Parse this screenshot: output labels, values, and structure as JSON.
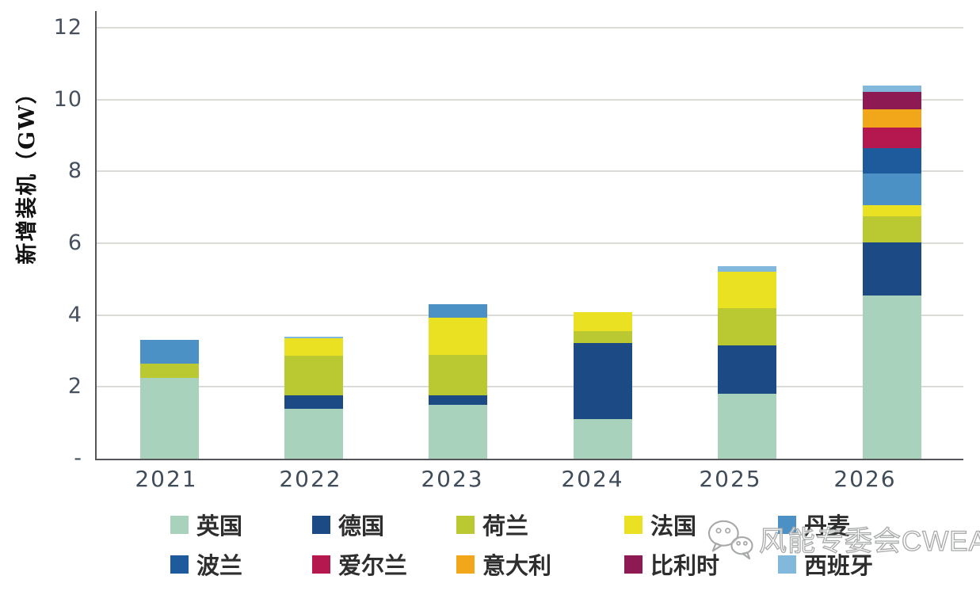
{
  "chart_data": {
    "type": "bar",
    "stacked": true,
    "title": "",
    "xlabel": "",
    "ylabel": "新增装机（GW）",
    "unit": "GW",
    "ylim": [
      0,
      12
    ],
    "grid": true,
    "legend_position": "bottom",
    "categories": [
      "2021",
      "2022",
      "2023",
      "2024",
      "2025",
      "2026"
    ],
    "y_ticks": [
      {
        "label": "12",
        "value": 12
      },
      {
        "label": "10",
        "value": 10
      },
      {
        "label": "8",
        "value": 8
      },
      {
        "label": "6",
        "value": 6
      },
      {
        "label": "4",
        "value": 4
      },
      {
        "label": "2",
        "value": 2
      },
      {
        "label": "-",
        "value": 0
      }
    ],
    "series": [
      {
        "name": "英国",
        "color": "#a8d2bc",
        "values": [
          2.25,
          1.4,
          1.5,
          1.1,
          1.8,
          4.55
        ]
      },
      {
        "name": "德国",
        "color": "#1b4a84",
        "values": [
          0,
          0.37,
          0.26,
          2.12,
          1.35,
          1.48
        ]
      },
      {
        "name": "荷兰",
        "color": "#bac832",
        "values": [
          0.4,
          1.1,
          1.12,
          0.33,
          1.05,
          0.72
        ]
      },
      {
        "name": "法国",
        "color": "#e9e122",
        "values": [
          0,
          0.48,
          1.05,
          0.53,
          1.0,
          0.3
        ]
      },
      {
        "name": "丹麦",
        "color": "#4b91c6",
        "values": [
          0.65,
          0,
          0.37,
          0,
          0,
          0.9
        ]
      },
      {
        "name": "波兰",
        "color": "#1d5b9d",
        "values": [
          0,
          0,
          0,
          0,
          0,
          0.7
        ]
      },
      {
        "name": "爱尔兰",
        "color": "#b5174f",
        "values": [
          0,
          0,
          0,
          0,
          0,
          0.58
        ]
      },
      {
        "name": "意大利",
        "color": "#f2a71b",
        "values": [
          0,
          0,
          0,
          0,
          0,
          0.5
        ]
      },
      {
        "name": "比利时",
        "color": "#8d1a52",
        "values": [
          0,
          0,
          0,
          0,
          0,
          0.48
        ]
      },
      {
        "name": "西班牙",
        "color": "#82b8dc",
        "values": [
          0,
          0.05,
          0,
          0,
          0.17,
          0.19
        ]
      }
    ]
  },
  "watermark": {
    "icon": "wechat-icon",
    "text": "风能专委会CWEA"
  }
}
